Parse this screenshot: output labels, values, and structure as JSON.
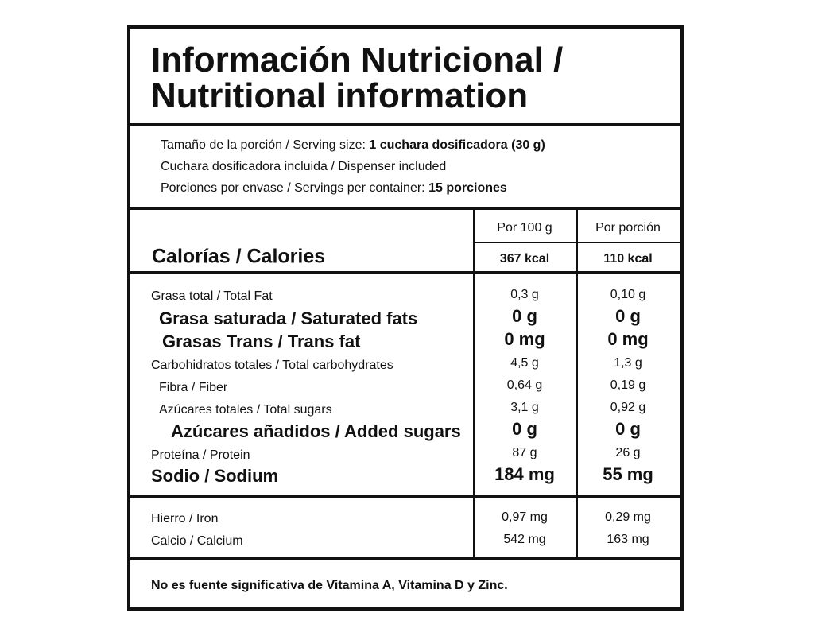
{
  "header": {
    "title": [
      "Información Nutricional /",
      "Nutritional information"
    ]
  },
  "serving": [
    {
      "label": "Tamaño de la porción / Serving size:",
      "value": "1 cuchara dosificadora (30 g)"
    },
    {
      "label": "Cuchara dosificadora incluida / Dispenser included"
    },
    {
      "label": "Porciones por envase / Servings per container:",
      "value": "15 porciones"
    }
  ],
  "table": {
    "columns": [
      "Por 100 g",
      "Por porción"
    ],
    "calories": {
      "label": "Calorías / Calories",
      "values": [
        "367 kcal",
        "110 kcal"
      ]
    },
    "nutrients": [
      {
        "label": "Grasa total / Total Fat",
        "values": [
          "0,3 g",
          "0,10 g"
        ]
      },
      {
        "label": "Grasa saturada / Saturated fats",
        "values": [
          "0 g",
          "0 g"
        ]
      },
      {
        "label": "Grasas Trans / Trans fat",
        "values": [
          "0 mg",
          "0 mg"
        ]
      },
      {
        "label": "Carbohidratos totales / Total carbohydrates",
        "values": [
          "4,5 g",
          "1,3 g"
        ]
      },
      {
        "label": "Fibra / Fiber",
        "values": [
          "0,64 g",
          "0,19 g"
        ]
      },
      {
        "label": "Azúcares totales / Total sugars",
        "values": [
          "3,1 g",
          "0,92 g"
        ]
      },
      {
        "label": "Azúcares añadidos / Added sugars",
        "values": [
          "0 g",
          "0 g"
        ]
      },
      {
        "label": "Proteína / Protein",
        "values": [
          "87 g",
          "26 g"
        ]
      },
      {
        "label": "Sodio / Sodium",
        "values": [
          "184 mg",
          "55 mg"
        ]
      }
    ],
    "minerals": [
      {
        "label": "Hierro / Iron",
        "values": [
          "0,97 mg",
          "0,29 mg"
        ]
      },
      {
        "label": "Calcio / Calcium",
        "values": [
          "542 mg",
          "163 mg"
        ]
      }
    ]
  },
  "footer": "No es fuente significativa de Vitamina A, Vitamina D y Zinc."
}
